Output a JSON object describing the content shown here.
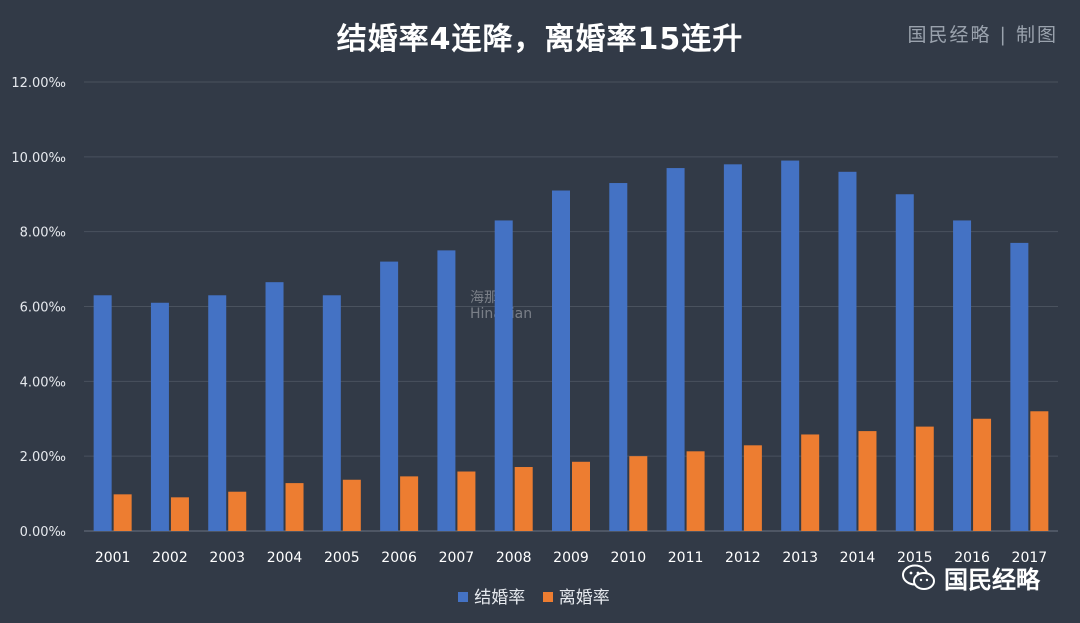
{
  "brand": {
    "tag": "国民经略 | 制图",
    "wechat_name": "国民经略",
    "watermark_cn": "海那边",
    "watermark_en": "Hinabian"
  },
  "colors": {
    "background": "#323a47",
    "marriage": "#4472c4",
    "divorce": "#ed7d31",
    "grid": "#4a525e"
  },
  "chart_data": {
    "type": "bar",
    "title": "结婚率4连降，离婚率15连升",
    "xlabel": "",
    "ylabel": "",
    "ylim": [
      0,
      12
    ],
    "y_ticks": [
      "0.00‰",
      "2.00‰",
      "4.00‰",
      "6.00‰",
      "8.00‰",
      "10.00‰",
      "12.00‰"
    ],
    "y_tick_values": [
      0,
      2,
      4,
      6,
      8,
      10,
      12
    ],
    "categories": [
      "2001",
      "2002",
      "2003",
      "2004",
      "2005",
      "2006",
      "2007",
      "2008",
      "2009",
      "2010",
      "2011",
      "2012",
      "2013",
      "2014",
      "2015",
      "2016",
      "2017"
    ],
    "series": [
      {
        "name": "结婚率",
        "color": "#4472c4",
        "values": [
          6.3,
          6.1,
          6.3,
          6.65,
          6.3,
          7.2,
          7.5,
          8.3,
          9.1,
          9.3,
          9.7,
          9.8,
          9.9,
          9.6,
          9.0,
          8.3,
          7.7
        ]
      },
      {
        "name": "离婚率",
        "color": "#ed7d31",
        "values": [
          0.98,
          0.9,
          1.05,
          1.28,
          1.37,
          1.46,
          1.59,
          1.71,
          1.85,
          2.0,
          2.13,
          2.29,
          2.58,
          2.67,
          2.79,
          3.0,
          3.2
        ]
      }
    ],
    "grid": true,
    "legend_position": "bottom"
  }
}
